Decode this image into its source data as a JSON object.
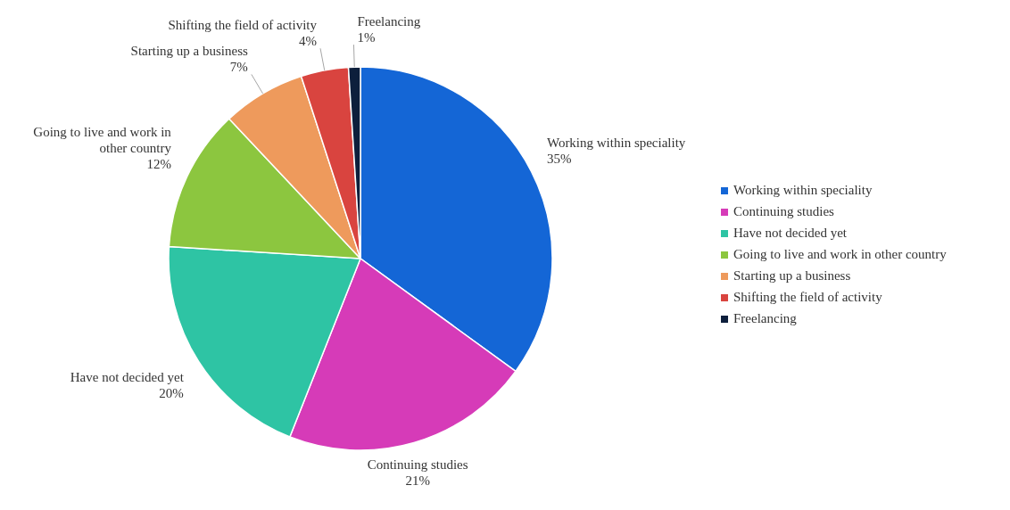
{
  "chart_data": {
    "type": "pie",
    "categories": [
      "Working within speciality",
      "Continuing studies",
      "Have not decided yet",
      "Going to live and work in other country",
      "Starting up a business",
      "Shifting the field of activity",
      "Freelancing"
    ],
    "values": [
      35,
      21,
      20,
      12,
      7,
      4,
      1
    ],
    "colors": [
      "#1466d6",
      "#d63bb8",
      "#2ec4a4",
      "#8cc63f",
      "#ee9a5c",
      "#d9443f",
      "#0d1f3c"
    ],
    "value_labels": [
      "35%",
      "21%",
      "20%",
      "12%",
      "7%",
      "4%",
      "1%"
    ],
    "legend": "right"
  }
}
